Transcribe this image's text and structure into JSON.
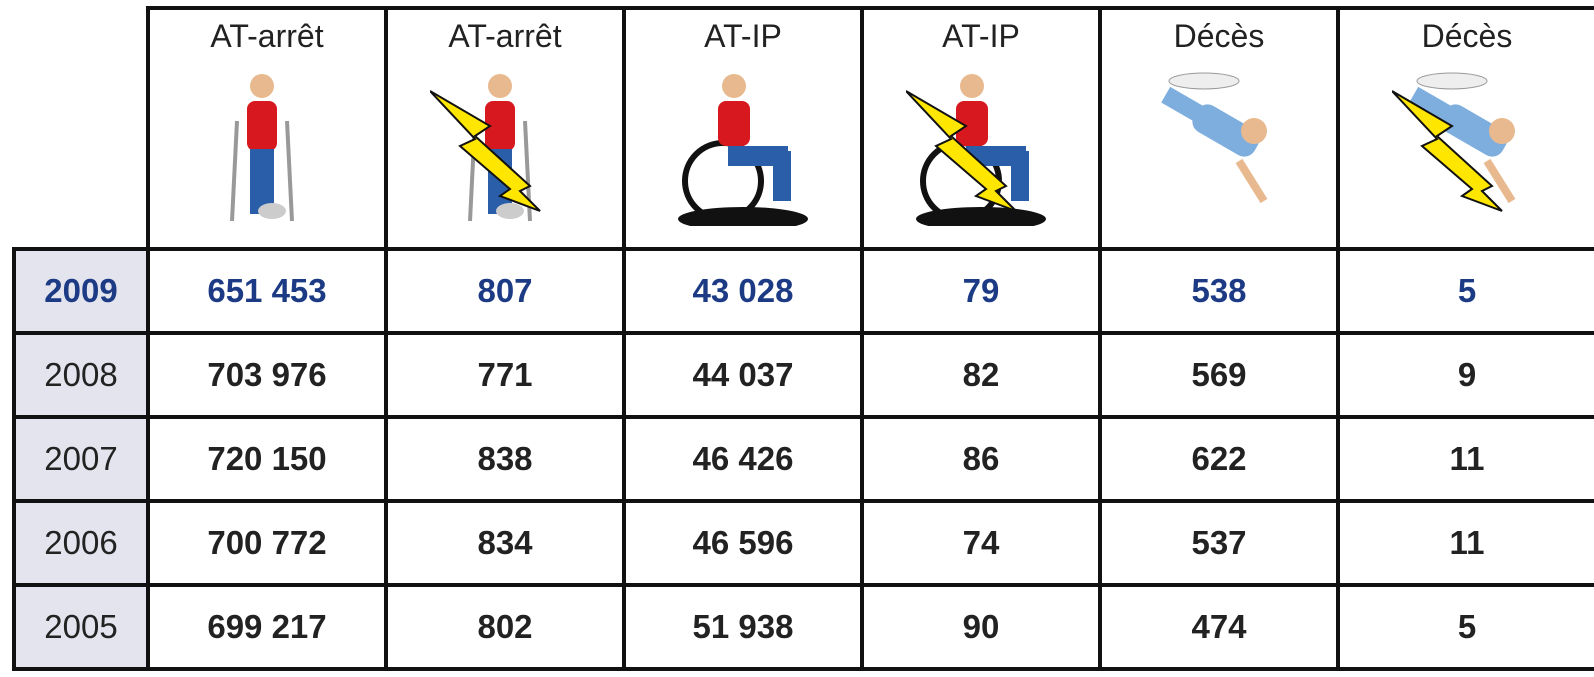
{
  "table": {
    "header": [
      "AT-arrêt",
      "AT-arrêt",
      "AT-IP",
      "AT-IP",
      "Décès",
      "Décès"
    ],
    "rows": [
      [
        "2009",
        "651 453",
        "807",
        "43 028",
        "79",
        "538",
        "5"
      ],
      [
        "2008",
        "703 976",
        "771",
        "44 037",
        "82",
        "569",
        "9"
      ],
      [
        "2007",
        "720 150",
        "838",
        "46 426",
        "86",
        "622",
        "11"
      ],
      [
        "2006",
        "700 772",
        "834",
        "46 596",
        "74",
        "537",
        "11"
      ],
      [
        "2005",
        "699 217",
        "802",
        "51 938",
        "90",
        "474",
        "5"
      ]
    ]
  }
}
